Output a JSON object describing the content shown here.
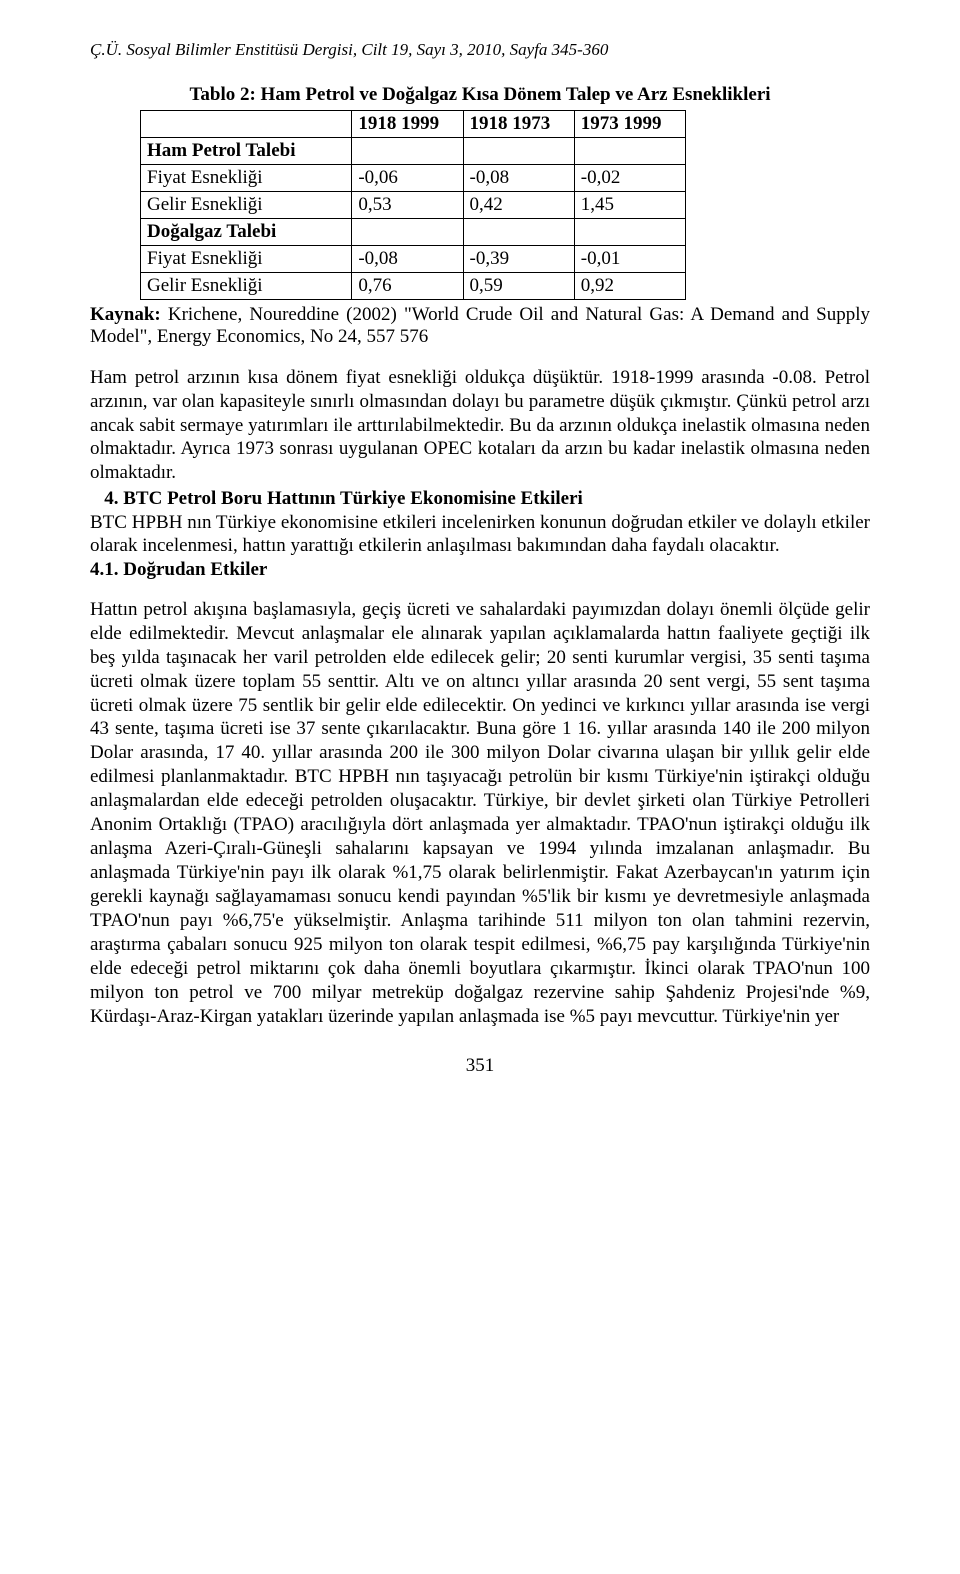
{
  "header": "Ç.Ü. Sosyal Bilimler Enstitüsü Dergisi, Cilt 19, Sayı 3, 2010, Sayfa 345-360",
  "table": {
    "title": "Tablo 2: Ham Petrol ve Doğalgaz Kısa Dönem Talep ve Arz Esneklikleri",
    "col_headers": [
      "",
      "1918 1999",
      "1918 1973",
      "1973 1999"
    ],
    "rows": [
      {
        "label": "Ham Petrol Talebi",
        "c1": "",
        "c2": "",
        "c3": ""
      },
      {
        "label": "Fiyat Esnekliği",
        "c1": "-0,06",
        "c2": "-0,08",
        "c3": "-0,02"
      },
      {
        "label": "Gelir Esnekliği",
        "c1": "0,53",
        "c2": "0,42",
        "c3": "1,45"
      },
      {
        "label": "Doğalgaz Talebi",
        "c1": "",
        "c2": "",
        "c3": ""
      },
      {
        "label": "Fiyat Esnekliği",
        "c1": "-0,08",
        "c2": "-0,39",
        "c3": "-0,01"
      },
      {
        "label": "Gelir Esnekliği",
        "c1": "0,76",
        "c2": "0,59",
        "c3": "0,92"
      }
    ]
  },
  "source": {
    "label": "Kaynak:",
    "text": " Krichene, Noureddine (2002) \"World Crude Oil and Natural Gas: A Demand and Supply Model\", Energy Economics, No 24, 557 576"
  },
  "para1": " Ham petrol arzının kısa dönem fiyat esnekliği oldukça düşüktür. 1918-1999 arasında -0.08. Petrol arzının, var olan kapasiteyle sınırlı olmasından dolayı bu parametre düşük çıkmıştır. Çünkü petrol arzı ancak sabit sermaye yatırımları ile arttırılabilmektedir. Bu da arzının oldukça inelastik olmasına neden olmaktadır. Ayrıca 1973 sonrası uygulanan OPEC kotaları da arzın bu kadar inelastik olmasına neden olmaktadır.",
  "section4_title": "4. BTC Petrol Boru Hattının Türkiye Ekonomisine Etkileri",
  "para2": "BTC HPBH nın Türkiye ekonomisine etkileri incelenirken konunun doğrudan etkiler ve dolaylı etkiler olarak incelenmesi, hattın yarattığı etkilerin anlaşılması bakımından daha faydalı olacaktır.",
  "section41_title": "4.1. Doğrudan Etkiler",
  "body": "Hattın petrol akışına başlamasıyla, geçiş ücreti ve sahalardaki payımızdan dolayı önemli ölçüde gelir elde edilmektedir. Mevcut anlaşmalar ele alınarak yapılan açıklamalarda hattın faaliyete geçtiği ilk beş yılda taşınacak her varil petrolden elde edilecek gelir; 20 senti kurumlar vergisi, 35 senti taşıma ücreti olmak üzere toplam 55 senttir. Altı ve on altıncı yıllar arasında 20 sent vergi, 55 sent taşıma ücreti olmak üzere 75 sentlik bir gelir elde edilecektir. On yedinci ve kırkıncı yıllar arasında ise vergi 43 sente, taşıma ücreti ise 37 sente çıkarılacaktır. Buna göre 1 16. yıllar arasında 140 ile 200 milyon Dolar arasında, 17 40. yıllar arasında 200 ile 300 milyon Dolar civarına ulaşan bir yıllık gelir elde edilmesi planlanmaktadır. BTC HPBH nın taşıyacağı petrolün bir kısmı Türkiye'nin iştirakçi olduğu anlaşmalardan elde edeceği petrolden oluşacaktır. Türkiye, bir devlet şirketi olan Türkiye Petrolleri Anonim Ortaklığı (TPAO) aracılığıyla dört anlaşmada yer almaktadır. TPAO'nun iştirakçi olduğu ilk anlaşma Azeri-Çıralı-Güneşli sahalarını kapsayan ve 1994 yılında imzalanan anlaşmadır. Bu anlaşmada Türkiye'nin payı ilk olarak %1,75 olarak belirlenmiştir. Fakat Azerbaycan'ın yatırım için gerekli kaynağı sağlayamaması sonucu kendi payından %5'lik bir kısmı ye devretmesiyle anlaşmada TPAO'nun payı %6,75'e yükselmiştir. Anlaşma tarihinde 511 milyon ton olan tahmini rezervin, araştırma çabaları sonucu 925 milyon ton olarak tespit edilmesi, %6,75 pay karşılığında Türkiye'nin elde edeceği petrol miktarını çok daha önemli boyutlara çıkarmıştır. İkinci olarak TPAO'nun 100 milyon ton petrol ve 700 milyar metreküp doğalgaz rezervine sahip Şahdeniz Projesi'nde %9, Kürdaşı-Araz-Kirgan yatakları üzerinde yapılan anlaşmada ise %5 payı mevcuttur. Türkiye'nin yer",
  "page_number": "351",
  "row_bold": {
    "0": true,
    "3": true
  },
  "colors": {
    "text": "#000000",
    "bg": "#ffffff",
    "border": "#000000"
  }
}
